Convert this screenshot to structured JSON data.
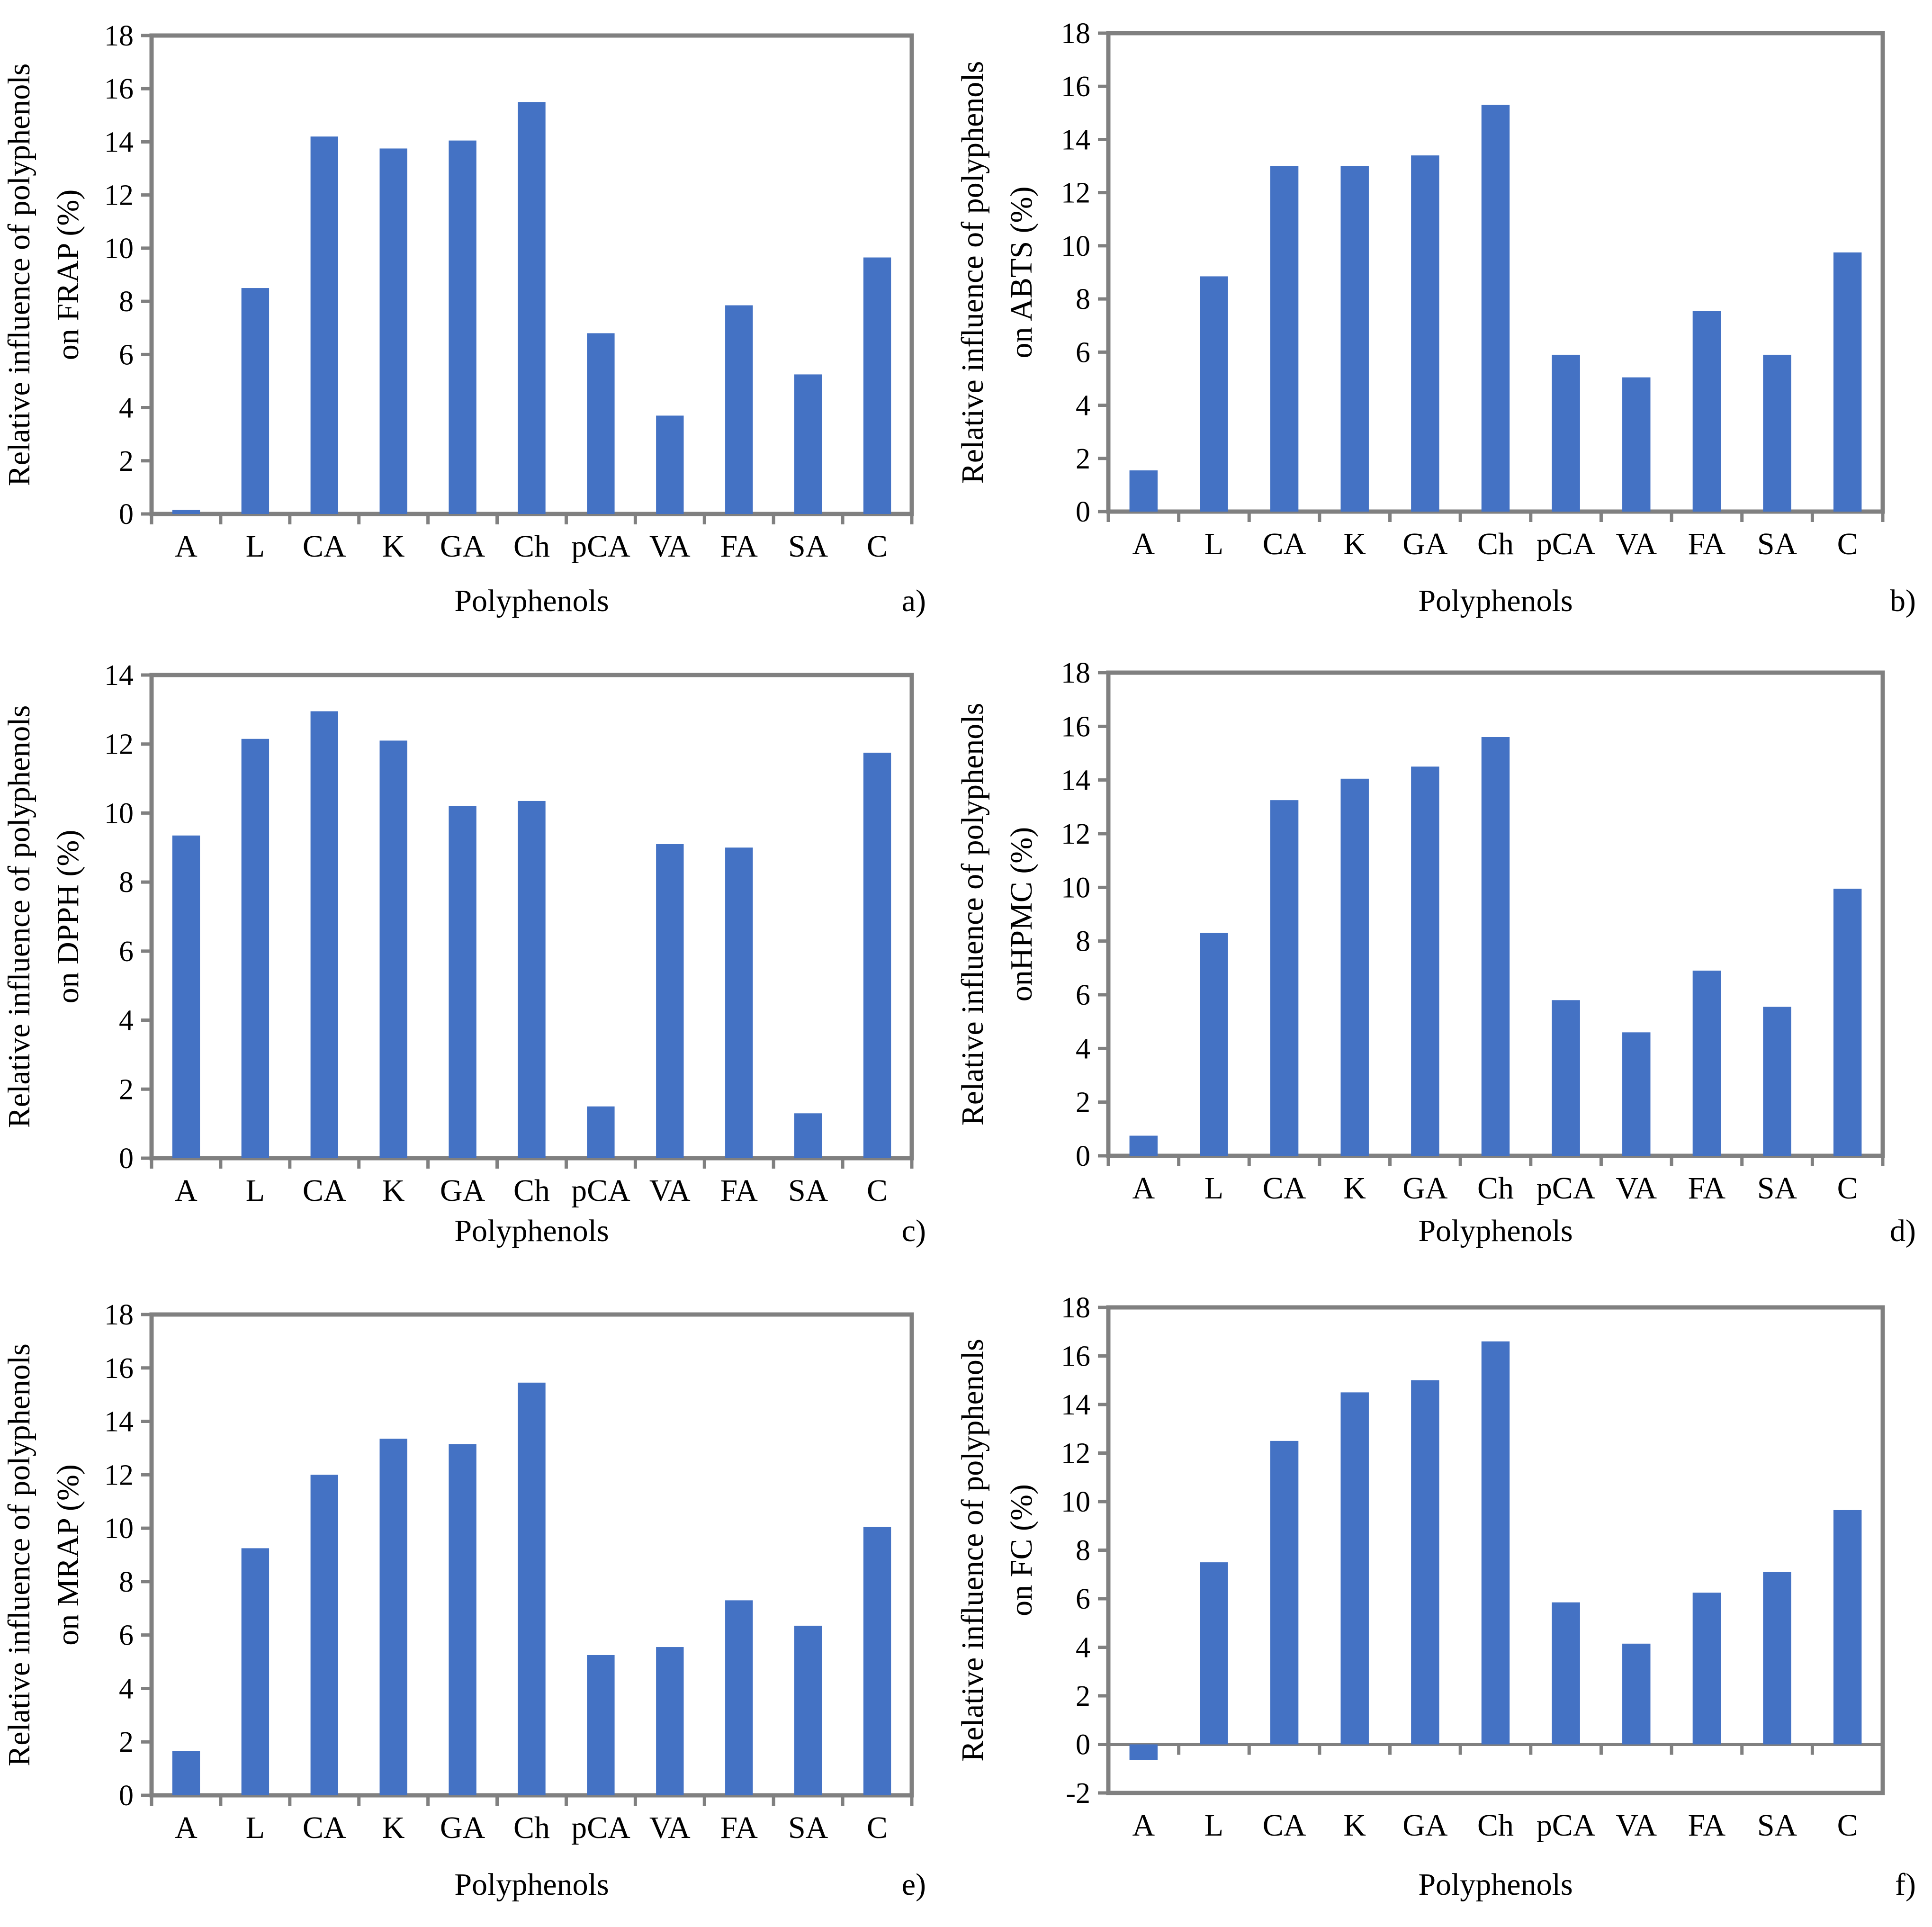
{
  "bar_color": "#4472C4",
  "frame_color": "#808080",
  "chart_data": [
    {
      "type": "bar",
      "tag": "a)",
      "categories": [
        "A",
        "L",
        "CA",
        "K",
        "GA",
        "Ch",
        "pCA",
        "VA",
        "FA",
        "SA",
        "C"
      ],
      "values": [
        0.15,
        8.5,
        14.2,
        13.75,
        14.05,
        15.5,
        6.8,
        3.7,
        7.85,
        5.25,
        9.65
      ],
      "xlabel": "Polyphenols",
      "ylabel_lines": [
        "Relative influence of polyphenols",
        "on FRAP (%)"
      ],
      "ylim": [
        0,
        18
      ],
      "yticks": [
        0,
        2,
        4,
        6,
        8,
        10,
        12,
        14,
        16,
        18
      ],
      "grid": false
    },
    {
      "type": "bar",
      "tag": "b)",
      "categories": [
        "A",
        "L",
        "CA",
        "K",
        "GA",
        "Ch",
        "pCA",
        "VA",
        "FA",
        "SA",
        "C"
      ],
      "values": [
        1.55,
        8.85,
        13.0,
        13.0,
        13.4,
        15.3,
        5.9,
        5.05,
        7.55,
        5.9,
        9.75
      ],
      "xlabel": "Polyphenols",
      "ylabel_lines": [
        "Relative influence of polyphenols",
        "on ABTS (%)"
      ],
      "ylim": [
        0,
        18
      ],
      "yticks": [
        0,
        2,
        4,
        6,
        8,
        10,
        12,
        14,
        16,
        18
      ],
      "grid": false
    },
    {
      "type": "bar",
      "tag": "c)",
      "categories": [
        "A",
        "L",
        "CA",
        "K",
        "GA",
        "Ch",
        "pCA",
        "VA",
        "FA",
        "SA",
        "C"
      ],
      "values": [
        9.35,
        12.15,
        12.95,
        12.1,
        10.2,
        10.35,
        1.5,
        9.1,
        9.0,
        1.3,
        11.75
      ],
      "xlabel": "Polyphenols",
      "ylabel_lines": [
        "Relative influence of polyphenols",
        "on DPPH (%)"
      ],
      "ylim": [
        0,
        14
      ],
      "yticks": [
        0,
        2,
        4,
        6,
        8,
        10,
        12,
        14
      ],
      "grid": false
    },
    {
      "type": "bar",
      "tag": "d)",
      "categories": [
        "A",
        "L",
        "CA",
        "K",
        "GA",
        "Ch",
        "pCA",
        "VA",
        "FA",
        "SA",
        "C"
      ],
      "values": [
        0.75,
        8.3,
        13.25,
        14.05,
        14.5,
        15.6,
        5.8,
        4.6,
        6.9,
        5.55,
        9.95
      ],
      "xlabel": "Polyphenols",
      "ylabel_lines": [
        "Relative influence of polyphenols",
        "onHPMC (%)"
      ],
      "ylim": [
        0,
        18
      ],
      "yticks": [
        0,
        2,
        4,
        6,
        8,
        10,
        12,
        14,
        16,
        18
      ],
      "grid": false
    },
    {
      "type": "bar",
      "tag": "e)",
      "categories": [
        "A",
        "L",
        "CA",
        "K",
        "GA",
        "Ch",
        "pCA",
        "VA",
        "FA",
        "SA",
        "C"
      ],
      "values": [
        1.65,
        9.25,
        12.0,
        13.35,
        13.15,
        15.45,
        5.25,
        5.55,
        7.3,
        6.35,
        10.05
      ],
      "xlabel": "Polyphenols",
      "ylabel_lines": [
        "Relative influence of polyphenols",
        "on MRAP (%)"
      ],
      "ylim": [
        0,
        18
      ],
      "yticks": [
        0,
        2,
        4,
        6,
        8,
        10,
        12,
        14,
        16,
        18
      ],
      "grid": false
    },
    {
      "type": "bar",
      "tag": "f)",
      "categories": [
        "A",
        "L",
        "CA",
        "K",
        "GA",
        "Ch",
        "pCA",
        "VA",
        "FA",
        "SA",
        "C"
      ],
      "values": [
        -0.65,
        7.5,
        12.5,
        14.5,
        15.0,
        16.6,
        5.85,
        4.15,
        6.25,
        7.1,
        9.65
      ],
      "xlabel": "Polyphenols",
      "ylabel_lines": [
        "Relative influence of polyphenols",
        "on FC (%)"
      ],
      "ylim": [
        -2,
        18
      ],
      "yticks": [
        -2,
        0,
        2,
        4,
        6,
        8,
        10,
        12,
        14,
        16,
        18
      ],
      "grid": false
    }
  ]
}
